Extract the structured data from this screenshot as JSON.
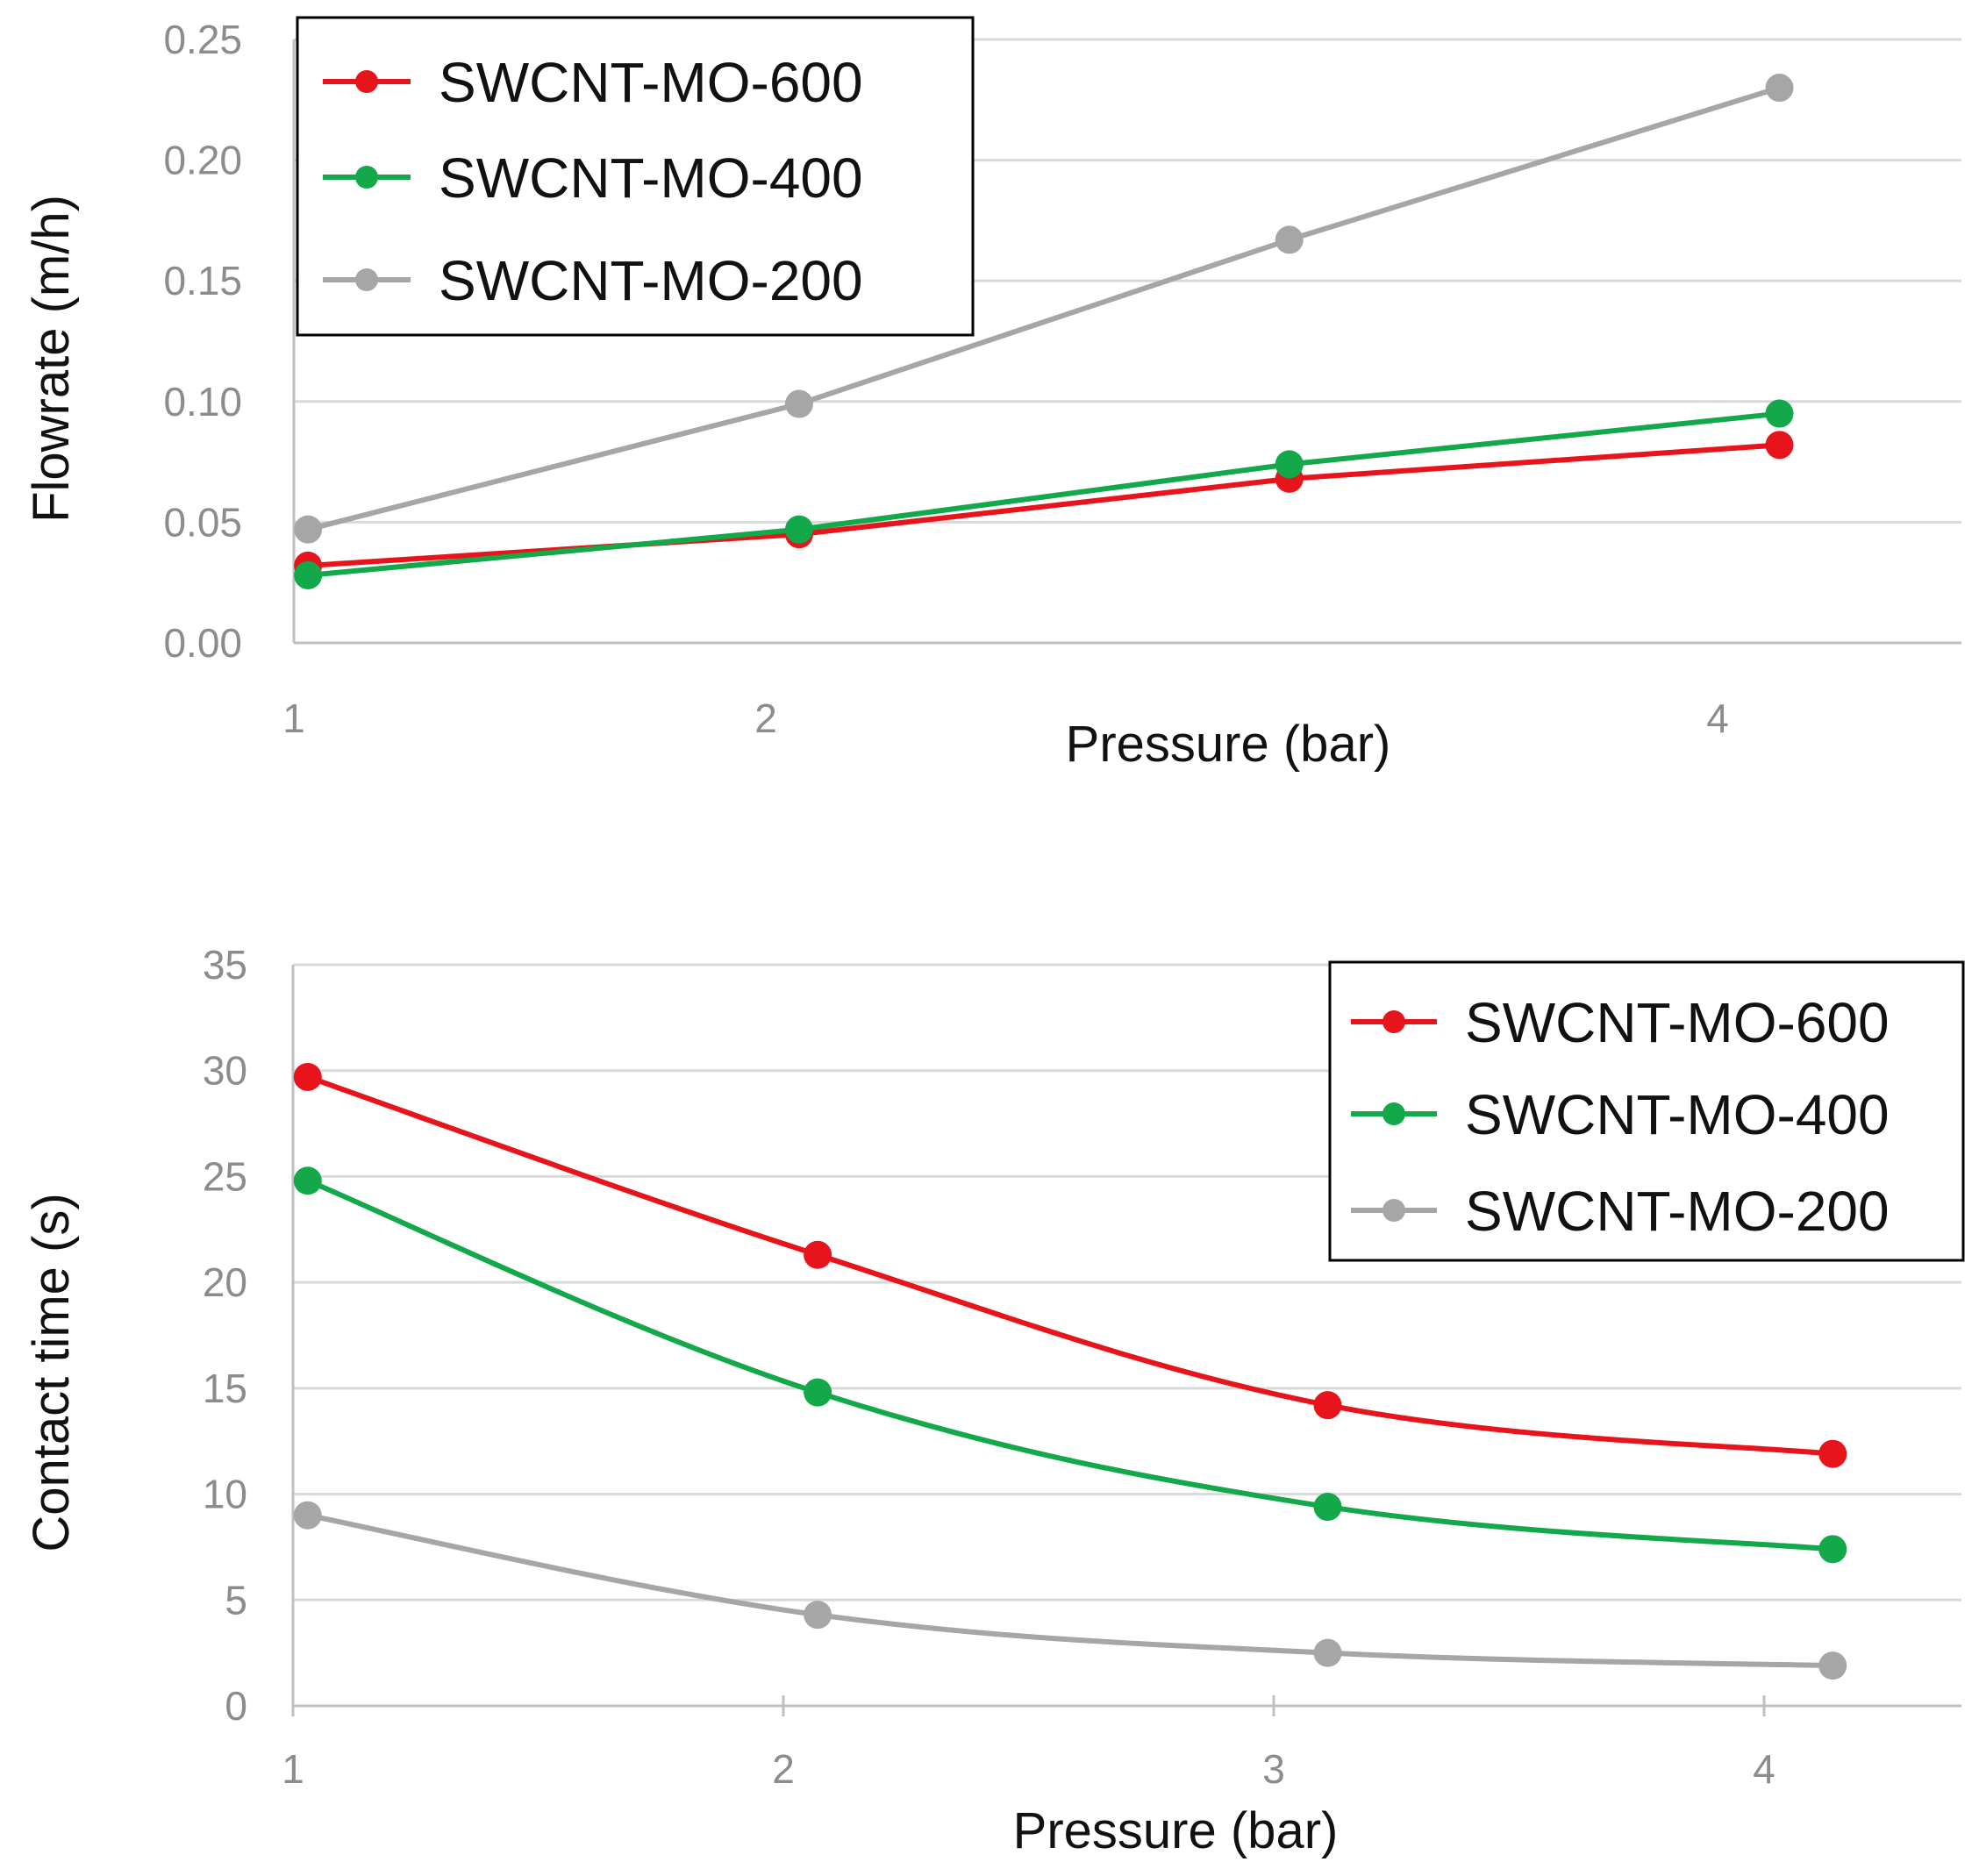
{
  "chart_data": [
    {
      "type": "line",
      "title": "",
      "xlabel": "Pressure (bar)",
      "ylabel": "Flowrate (m/h)",
      "ylim": [
        0,
        0.25
      ],
      "xlim": [
        1,
        4.5
      ],
      "yticks": [
        "0.00",
        "0.05",
        "0.10",
        "0.15",
        "0.20",
        "0.25"
      ],
      "xticks": [
        "1",
        "2",
        "4"
      ],
      "x": [
        1.03,
        2.07,
        3.1,
        4.13
      ],
      "series": [
        {
          "name": "SWCNT-MO-600",
          "color": "#e8141b",
          "values": [
            0.032,
            0.045,
            0.068,
            0.082
          ]
        },
        {
          "name": "SWCNT-MO-400",
          "color": "#13a84a",
          "values": [
            0.028,
            0.047,
            0.074,
            0.095
          ]
        },
        {
          "name": "SWCNT-MO-200",
          "color": "#a6a6a6",
          "values": [
            0.047,
            0.099,
            0.167,
            0.23
          ]
        }
      ],
      "legend": "top-left"
    },
    {
      "type": "line",
      "title": "",
      "xlabel": "Pressure (bar)",
      "ylabel": "Contact time (s)",
      "ylim": [
        0,
        35
      ],
      "xlim": [
        1,
        4.4
      ],
      "yticks": [
        "0",
        "5",
        "10",
        "15",
        "20",
        "25",
        "30",
        "35"
      ],
      "xticks": [
        "1",
        "2",
        "3",
        "4"
      ],
      "x": [
        1.03,
        2.07,
        3.11,
        4.14
      ],
      "series": [
        {
          "name": "SWCNT-MO-600",
          "color": "#e8141b",
          "values": [
            29.7,
            21.3,
            14.2,
            11.9
          ]
        },
        {
          "name": "SWCNT-MO-400",
          "color": "#13a84a",
          "values": [
            24.8,
            14.8,
            9.4,
            7.4
          ]
        },
        {
          "name": "SWCNT-MO-200",
          "color": "#a6a6a6",
          "values": [
            9.0,
            4.3,
            2.5,
            1.9
          ]
        }
      ],
      "legend": "top-right"
    }
  ]
}
